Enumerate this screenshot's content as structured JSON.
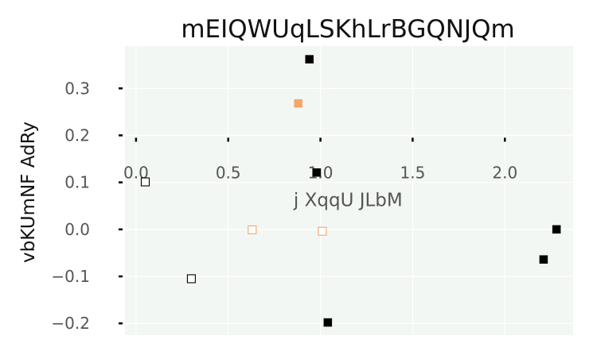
{
  "chart_data": {
    "type": "scatter",
    "title": "mEIQWUqLSKhLrBGQNJQm",
    "xlabel": "j XqqU JLbM",
    "ylabel": "vbKUmNF AdRy",
    "xlim": [
      -0.06,
      2.37
    ],
    "ylim": [
      -0.225,
      0.39
    ],
    "xticks": [
      0.0,
      0.5,
      1.0,
      1.5,
      2.0
    ],
    "xtick_labels": [
      "0.0",
      "0.5",
      "1.0",
      "1.5",
      "2.0"
    ],
    "yticks": [
      -0.2,
      -0.1,
      0.0,
      0.1,
      0.2,
      0.3
    ],
    "ytick_labels": [
      "−0.2",
      "−0.1",
      "0.0",
      "0.1",
      "0.2",
      "0.3"
    ],
    "x_axis_position_y": 0.195,
    "grid": true,
    "background": "#f2f7f3",
    "series": [
      {
        "color": "#000000",
        "filled": true,
        "points": [
          {
            "x": 0.94,
            "y": 0.362
          },
          {
            "x": 0.98,
            "y": 0.121
          },
          {
            "x": 1.04,
            "y": -0.198
          },
          {
            "x": 2.21,
            "y": -0.064
          },
          {
            "x": 2.28,
            "y": 0.0
          }
        ]
      },
      {
        "color": "#f4a66a",
        "filled": true,
        "points": [
          {
            "x": 0.88,
            "y": 0.268
          }
        ]
      },
      {
        "color": "#000000",
        "filled": false,
        "points": [
          {
            "x": 0.05,
            "y": 0.101
          },
          {
            "x": 0.3,
            "y": -0.105
          }
        ]
      },
      {
        "color": "#f4a66a",
        "filled": false,
        "points": [
          {
            "x": 0.63,
            "y": -0.001
          },
          {
            "x": 1.01,
            "y": -0.004
          }
        ]
      }
    ]
  }
}
